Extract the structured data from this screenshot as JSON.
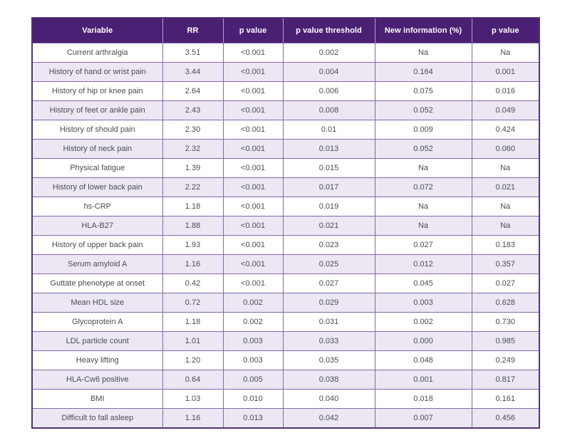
{
  "chart_data": {
    "type": "table",
    "title": "",
    "columns": [
      "Variable",
      "RR",
      "p value",
      "p value threshold",
      "New information (%)",
      "p value"
    ],
    "rows": [
      [
        "Current arthralgia",
        "3.51",
        "<0.001",
        "0.002",
        "Na",
        "Na"
      ],
      [
        "History of hand or wrist pain",
        "3.44",
        "<0.001",
        "0.004",
        "0.164",
        "0.001"
      ],
      [
        "History of hip or knee pain",
        "2.64",
        "<0.001",
        "0.006",
        "0.075",
        "0.016"
      ],
      [
        "History of feet or ankle pain",
        "2.43",
        "<0.001",
        "0.008",
        "0.052",
        "0.049"
      ],
      [
        "History of should pain",
        "2.30",
        "<0.001",
        "0.01",
        "0.009",
        "0.424"
      ],
      [
        "History of neck pain",
        "2.32",
        "<0.001",
        "0.013",
        "0.052",
        "0.060"
      ],
      [
        "Physical fatigue",
        "1.39",
        "<0.001",
        "0.015",
        "Na",
        "Na"
      ],
      [
        "History of lower back pain",
        "2.22",
        "<0.001",
        "0.017",
        "0.072",
        "0.021"
      ],
      [
        "hs-CRP",
        "1.18",
        "<0.001",
        "0.019",
        "Na",
        "Na"
      ],
      [
        "HLA-B27",
        "1.88",
        "<0.001",
        "0.021",
        "Na",
        "Na"
      ],
      [
        "History of upper back pain",
        "1.93",
        "<0.001",
        "0.023",
        "0.027",
        "0.183"
      ],
      [
        "Serum amyloid A",
        "1.16",
        "<0.001",
        "0.025",
        "0.012",
        "0.357"
      ],
      [
        "Guttate phenotype at onset",
        "0.42",
        "<0.001",
        "0.027",
        "0.045",
        "0.027"
      ],
      [
        "Mean HDL size",
        "0.72",
        "0.002",
        "0.029",
        "0.003",
        "0.628"
      ],
      [
        "Glycoprotein A",
        "1.18",
        "0.002",
        "0.031",
        "0.002",
        "0.730"
      ],
      [
        "LDL particle count",
        "1.01",
        "0.003",
        "0.033",
        "0.000",
        "0.985"
      ],
      [
        "Heavy lifting",
        "1.20",
        "0.003",
        "0.035",
        "0.048",
        "0.249"
      ],
      [
        "HLA-Cw6 positive",
        "0.64",
        "0.005",
        "0.038",
        "0.001",
        "0.817"
      ],
      [
        "BMI",
        "1.03",
        "0.010",
        "0.040",
        "0.018",
        "0.161"
      ],
      [
        "Difficult to fall asleep",
        "1.16",
        "0.013",
        "0.042",
        "0.007",
        "0.456"
      ]
    ]
  },
  "colors": {
    "header_bg": "#4a2074",
    "header_text": "#ffffff",
    "header_separator": "#b3a0cd",
    "border": "#8668a8",
    "outer_border": "#53346f",
    "row_bg": "#ffffff",
    "row_alt_bg": "#ece7f3",
    "body_text": "#4c4c52"
  }
}
